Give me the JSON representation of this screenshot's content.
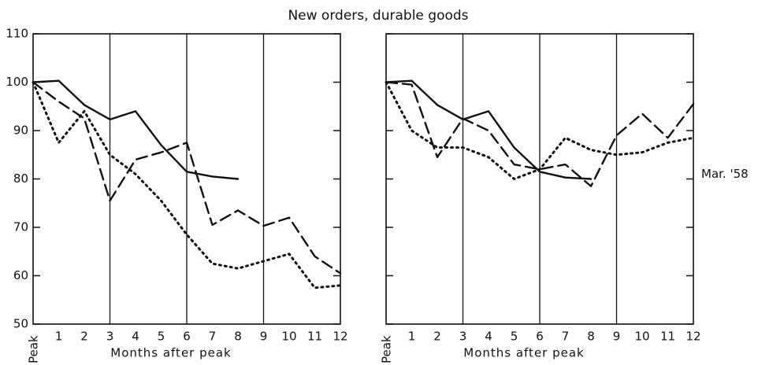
{
  "title": "New orders, durable goods",
  "chart_data": [
    {
      "type": "line",
      "xlabel": "Months after peak",
      "categories": [
        "Peak",
        "1",
        "2",
        "3",
        "4",
        "5",
        "6",
        "7",
        "8",
        "9",
        "10",
        "11",
        "12"
      ],
      "ylim": [
        50,
        110
      ],
      "yticks": [
        50,
        60,
        70,
        80,
        90,
        100,
        110
      ],
      "ytick_labels": true,
      "vlines": [
        "3",
        "6",
        "9"
      ],
      "series": [
        {
          "color": "#111",
          "dash": "solid",
          "values": [
            100,
            100.3,
            95.3,
            92.3,
            94,
            87,
            81.5,
            80.5,
            80,
            null,
            null,
            null,
            null
          ]
        },
        {
          "color": "#111",
          "dash": "dashed",
          "values": [
            100,
            96,
            92.5,
            75.5,
            84,
            85.5,
            87.5,
            70.5,
            73.5,
            70.3,
            72,
            64,
            60.5
          ]
        },
        {
          "color": "#111",
          "dash": "dotted",
          "values": [
            100,
            87.5,
            94,
            85,
            81,
            75.5,
            68.5,
            62.5,
            61.5,
            63,
            64.5,
            57.5,
            58
          ]
        }
      ]
    },
    {
      "type": "line",
      "xlabel": "Months after peak",
      "categories": [
        "Peak",
        "1",
        "2",
        "3",
        "4",
        "5",
        "6",
        "7",
        "8",
        "9",
        "10",
        "11",
        "12"
      ],
      "ylim": [
        50,
        110
      ],
      "yticks": [
        50,
        60,
        70,
        80,
        90,
        100,
        110
      ],
      "ytick_labels": false,
      "vlines": [
        "3",
        "6",
        "9"
      ],
      "annotations": [
        {
          "text": "Mar. '58",
          "y": 81
        }
      ],
      "series": [
        {
          "color": "#111",
          "dash": "solid",
          "values": [
            100,
            100.3,
            95.3,
            92.3,
            94,
            86.5,
            81.5,
            80.3,
            80,
            null,
            null,
            null,
            null
          ]
        },
        {
          "color": "#111",
          "dash": "dashed",
          "values": [
            100,
            99.5,
            84.5,
            92.5,
            90,
            83,
            82,
            83,
            78.5,
            89,
            93.5,
            88.5,
            95.5
          ]
        },
        {
          "color": "#111",
          "dash": "dotted",
          "values": [
            100,
            90,
            86.5,
            86.5,
            84.5,
            80,
            82,
            88.5,
            86,
            85,
            85.5,
            87.5,
            88.5
          ]
        }
      ]
    }
  ]
}
